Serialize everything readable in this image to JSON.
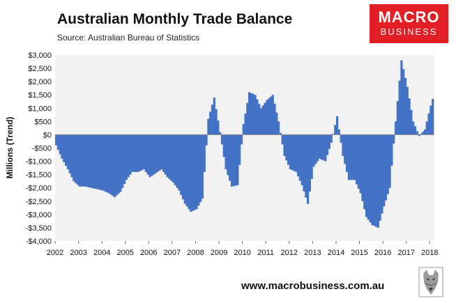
{
  "header": {
    "title": "Australian Monthly Trade Balance",
    "source": "Source: Australian Bureau of Statistics"
  },
  "logo": {
    "line1": "MACRO",
    "line2": "BUSINESS",
    "color": "#e21f26"
  },
  "footer": {
    "website": "www.macrobusiness.com.au"
  },
  "chart_data": {
    "type": "area",
    "title": "Australian Monthly Trade Balance",
    "ylabel": "Millions (Trend)",
    "xlabel": "",
    "ylim": [
      -4000,
      3000
    ],
    "xlim": [
      2002,
      2018.2
    ],
    "y_ticks": [
      3000,
      2500,
      2000,
      1500,
      1000,
      500,
      0,
      -500,
      -1000,
      -1500,
      -2000,
      -2500,
      -3000,
      -3500,
      -4000
    ],
    "y_tick_labels": [
      "$3,000",
      "$2,500",
      "$2,000",
      "$1,500",
      "$1,000",
      "$500",
      "$0",
      "-$500",
      "-$1,000",
      "-$1,500",
      "-$2,000",
      "-$2,500",
      "-$3,000",
      "-$3,500",
      "-$4,000"
    ],
    "x_ticks": [
      2002,
      2003,
      2004,
      2005,
      2006,
      2007,
      2008,
      2009,
      2010,
      2011,
      2012,
      2013,
      2014,
      2015,
      2016,
      2017,
      2018
    ],
    "x_tick_labels": [
      "2002",
      "2003",
      "2004",
      "2005",
      "2006",
      "2007",
      "2008",
      "2009",
      "2010",
      "2011",
      "2012",
      "2013",
      "2014",
      "2015",
      "2016",
      "2017",
      "2018"
    ],
    "grid": false,
    "plot_background": "#f2f2f2",
    "fill_color": "#4472c4",
    "series": [
      {
        "x": [
          2002.0,
          2002.25,
          2002.5,
          2002.75,
          2003.0,
          2003.25,
          2003.5,
          2003.75,
          2004.0,
          2004.25,
          2004.5,
          2004.75,
          2005.0,
          2005.25,
          2005.5,
          2005.75,
          2006.0,
          2006.25,
          2006.5,
          2006.75,
          2007.0,
          2007.25,
          2007.5,
          2007.75,
          2008.0,
          2008.25,
          2008.5,
          2008.75,
          2009.0,
          2009.25,
          2009.5,
          2009.75,
          2010.0,
          2010.25,
          2010.5,
          2010.75,
          2011.0,
          2011.25,
          2011.5,
          2011.75,
          2012.0,
          2012.25,
          2012.5,
          2012.75,
          2013.0,
          2013.25,
          2013.5,
          2013.75,
          2014.0,
          2014.25,
          2014.5,
          2014.75,
          2015.0,
          2015.25,
          2015.5,
          2015.75,
          2016.0,
          2016.25,
          2016.5,
          2016.75,
          2017.0,
          2017.25,
          2017.5,
          2017.75,
          2018.0,
          2018.1
        ],
        "values": [
          -400,
          -900,
          -1300,
          -1750,
          -1950,
          -1950,
          -2000,
          -2050,
          -2100,
          -2200,
          -2350,
          -2150,
          -1700,
          -1400,
          -1400,
          -1300,
          -1600,
          -1450,
          -1300,
          -1600,
          -1800,
          -2100,
          -2600,
          -2900,
          -2800,
          -2400,
          600,
          1400,
          100,
          -1300,
          -1950,
          -1900,
          400,
          1600,
          1500,
          1000,
          1300,
          1500,
          500,
          -800,
          -1300,
          -1400,
          -1900,
          -2600,
          -1200,
          -900,
          -1000,
          -300,
          700,
          -800,
          -1700,
          -1700,
          -2200,
          -3100,
          -3400,
          -3500,
          -2700,
          -2000,
          500,
          2800,
          1800,
          500,
          -50,
          200,
          1100,
          1400
        ]
      }
    ]
  }
}
